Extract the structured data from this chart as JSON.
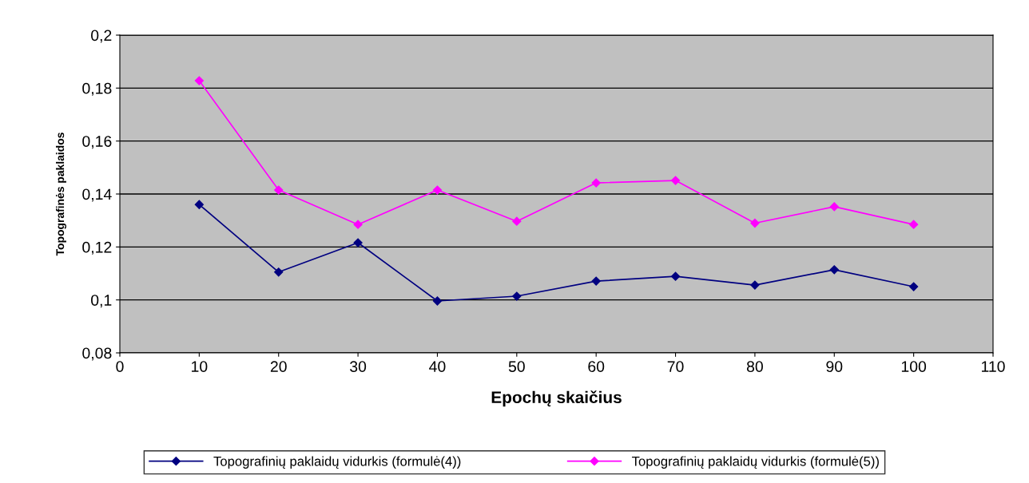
{
  "chart_data": {
    "type": "line",
    "xlabel": "Epochų skaičius",
    "ylabel": "Topografinės paklaidos",
    "x": [
      10,
      20,
      30,
      40,
      50,
      60,
      70,
      80,
      90,
      100
    ],
    "series": [
      {
        "name": "Topografinių paklaidų vidurkis (formulė(4))",
        "color": "#000080",
        "values": [
          0.136,
          0.1105,
          0.1216,
          0.0996,
          0.1014,
          0.1071,
          0.1089,
          0.1056,
          0.1114,
          0.105
        ]
      },
      {
        "name": "Topografinių paklaidų vidurkis (formulė(5))",
        "color": "#ff00ff",
        "values": [
          0.1828,
          0.1415,
          0.1285,
          0.1415,
          0.1297,
          0.1442,
          0.1451,
          0.129,
          0.1352,
          0.1285
        ]
      }
    ],
    "xlim": [
      0,
      110
    ],
    "xticks": [
      0,
      10,
      20,
      30,
      40,
      50,
      60,
      70,
      80,
      90,
      100,
      110
    ],
    "ylim": [
      0.08,
      0.2
    ],
    "yticks": [
      {
        "value": 0.08,
        "label": "0,08"
      },
      {
        "value": 0.1,
        "label": "0,1"
      },
      {
        "value": 0.12,
        "label": "0,12"
      },
      {
        "value": 0.14,
        "label": "0,14"
      },
      {
        "value": 0.16,
        "label": "0,16"
      },
      {
        "value": 0.18,
        "label": "0,18"
      },
      {
        "value": 0.2,
        "label": "0,2"
      }
    ],
    "grid": "y",
    "legend": "bottom",
    "marker": "diamond",
    "line_style": "solid"
  }
}
